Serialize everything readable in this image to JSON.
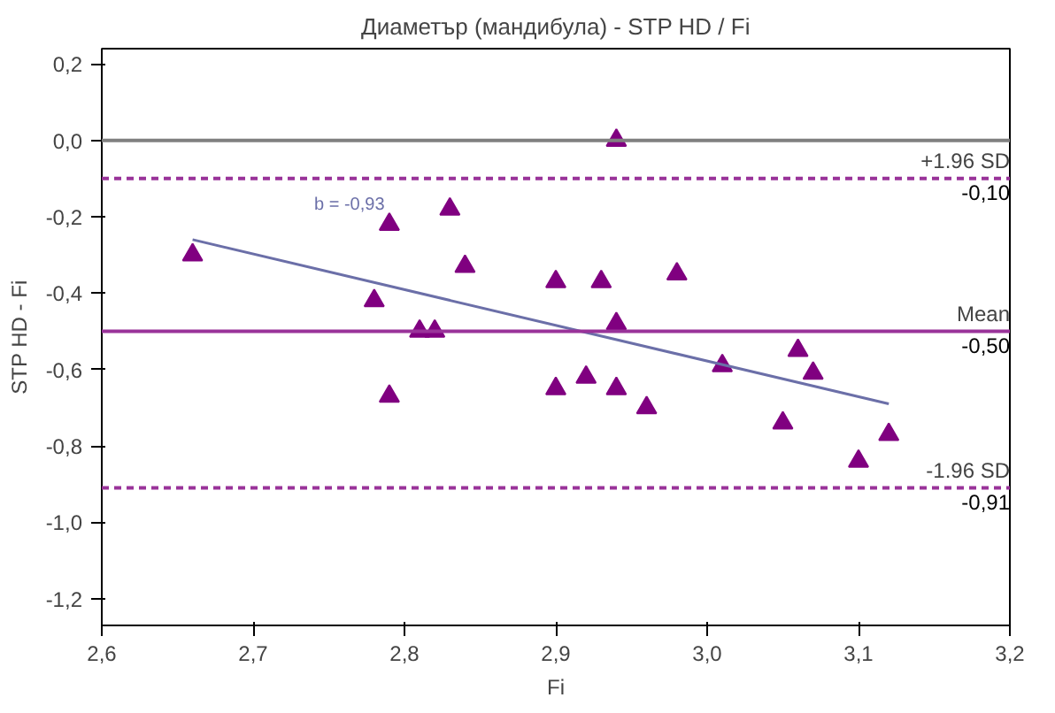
{
  "chart_data": {
    "type": "scatter",
    "title": "Диаметър (мандибула) - STP HD / Fi",
    "xlabel": "Fi",
    "ylabel": "STP HD - Fi",
    "xlim": [
      2.6,
      3.2
    ],
    "ylim": [
      -1.27,
      0.24
    ],
    "xticks": [
      {
        "value": 2.6,
        "label": "2,6"
      },
      {
        "value": 2.7,
        "label": "2,7"
      },
      {
        "value": 2.8,
        "label": "2,8"
      },
      {
        "value": 2.9,
        "label": "2,9"
      },
      {
        "value": 3.0,
        "label": "3,0"
      },
      {
        "value": 3.1,
        "label": "3,1"
      },
      {
        "value": 3.2,
        "label": "3,2"
      }
    ],
    "yticks": [
      {
        "value": 0.2,
        "label": "0,2"
      },
      {
        "value": 0.0,
        "label": "0,0"
      },
      {
        "value": -0.2,
        "label": "-0,2"
      },
      {
        "value": -0.4,
        "label": "-0,4"
      },
      {
        "value": -0.6,
        "label": "-0,6"
      },
      {
        "value": -0.8,
        "label": "-0,8"
      },
      {
        "value": -1.0,
        "label": "-1,0"
      },
      {
        "value": -1.2,
        "label": "-1,2"
      }
    ],
    "marker": "triangle",
    "grid": false,
    "series": [
      {
        "color": "#800080",
        "x": [
          2.66,
          2.78,
          2.79,
          2.79,
          2.81,
          2.82,
          2.83,
          2.84,
          2.9,
          2.9,
          2.92,
          2.93,
          2.94,
          2.94,
          2.94,
          2.96,
          2.98,
          3.01,
          3.05,
          3.06,
          3.07,
          3.1,
          3.12
        ],
        "values": [
          -0.3,
          -0.42,
          -0.22,
          -0.67,
          -0.5,
          -0.5,
          -0.18,
          -0.33,
          -0.37,
          -0.65,
          -0.62,
          -0.37,
          -0.65,
          -0.48,
          0.0,
          -0.7,
          -0.35,
          -0.59,
          -0.74,
          -0.55,
          -0.61,
          -0.84,
          -0.77
        ]
      },
      {
        "type": "line",
        "marker": "none",
        "color": "#6b6fa8",
        "x": [
          2.66,
          3.12
        ],
        "values": [
          -0.26,
          -0.69
        ]
      }
    ],
    "ref_lines": [
      {
        "axis": "y",
        "value": 0.0,
        "label": null,
        "color": "#808080",
        "line_style": "solid"
      },
      {
        "axis": "y",
        "value": -0.1,
        "label": "+1.96 SD",
        "color": "#993399",
        "line_style": "dashed"
      },
      {
        "axis": "y",
        "value": -0.5,
        "label": "Mean",
        "color": "#993399",
        "line_style": "solid"
      },
      {
        "axis": "y",
        "value": -0.91,
        "label": "-1.96 SD",
        "color": "#993399",
        "line_style": "dashed"
      }
    ],
    "annotations": [
      {
        "text": "-0,10",
        "y": -0.1
      },
      {
        "text": "-0,50",
        "y": -0.5
      },
      {
        "text": "-0,91",
        "y": -0.91
      },
      "b = -0,93"
    ]
  }
}
